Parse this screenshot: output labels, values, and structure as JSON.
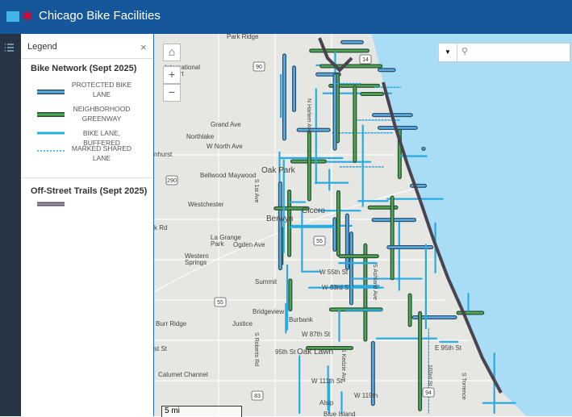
{
  "header": {
    "title": "Chicago Bike Facilities"
  },
  "legend": {
    "title": "Legend",
    "close": "×",
    "network": {
      "title": "Bike Network (Sept 2025)",
      "items": [
        "PROTECTED BIKE LANE",
        "NEIGHBORHOOD GREENWAY",
        "BIKE LANE, BUFFERED",
        "MARKED SHARED LANE"
      ]
    },
    "trails": {
      "title": "Off-Street Trails (Sept 2025)"
    }
  },
  "map": {
    "zoom_in": "+",
    "zoom_out": "−",
    "scale": "5 mi",
    "labels": [
      "Park Ridge",
      "International",
      "Airport",
      "Grand Ave",
      "Northlake",
      "W North Ave",
      "nhurst",
      "Bellwood",
      "Maywood",
      "Oak Park",
      "Westchester",
      "Cicero",
      "Berwyn",
      "k Rd",
      "La Grange",
      "Park",
      "Ogden Ave",
      "Western",
      "Springs",
      "W 55th St",
      "W 63rd St",
      "Summit",
      "Bridgeview",
      "Burr Ridge",
      "Justice",
      "Burbank",
      "W 87th St",
      "95th St",
      "Oak Lawn",
      "E 95th St",
      "st St",
      "Calumet Channel",
      "W 111th St",
      "Alsip",
      "Blue Island",
      "W 119th",
      "N Harlem Ave",
      "S 1st Ave",
      "S Roberts Rd",
      "S Kedzie Ave",
      "S Ashland Ave",
      "103rd St",
      "S Torrence"
    ],
    "shields": [
      "90",
      "290",
      "55",
      "55",
      "83",
      "94",
      "14"
    ]
  }
}
